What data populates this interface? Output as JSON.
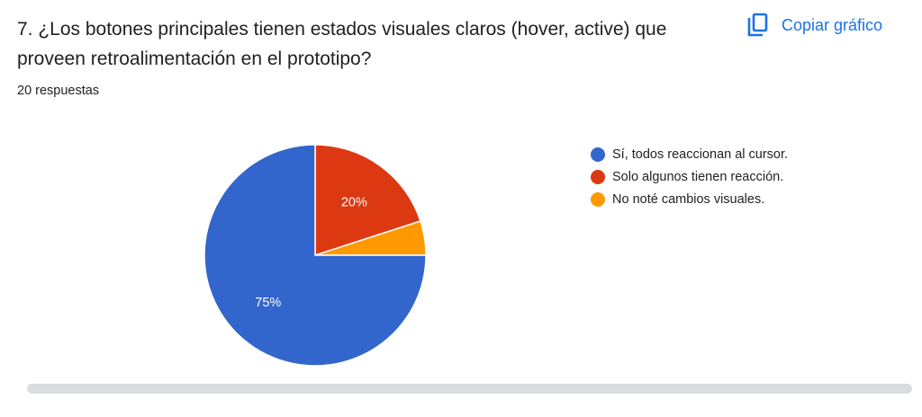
{
  "question": {
    "title": "7. ¿Los botones principales tienen estados visuales claros (hover, active) que proveen retroalimentación en el prototipo?",
    "responses": "20 respuestas"
  },
  "copy_button": {
    "label": "Copiar gráfico",
    "icon": "copy-icon",
    "color": "#1a73e8"
  },
  "chart_data": {
    "type": "pie",
    "categories": [
      "Sí, todos reaccionan al cursor.",
      "Solo algunos tienen reacción.",
      "No noté cambios visuales."
    ],
    "values": [
      75,
      20,
      5
    ],
    "unit": "%",
    "data_labels": [
      "75%",
      "20%",
      ""
    ],
    "colors": [
      "#3366cc",
      "#dc3912",
      "#ff9900"
    ],
    "legend_position": "right"
  }
}
